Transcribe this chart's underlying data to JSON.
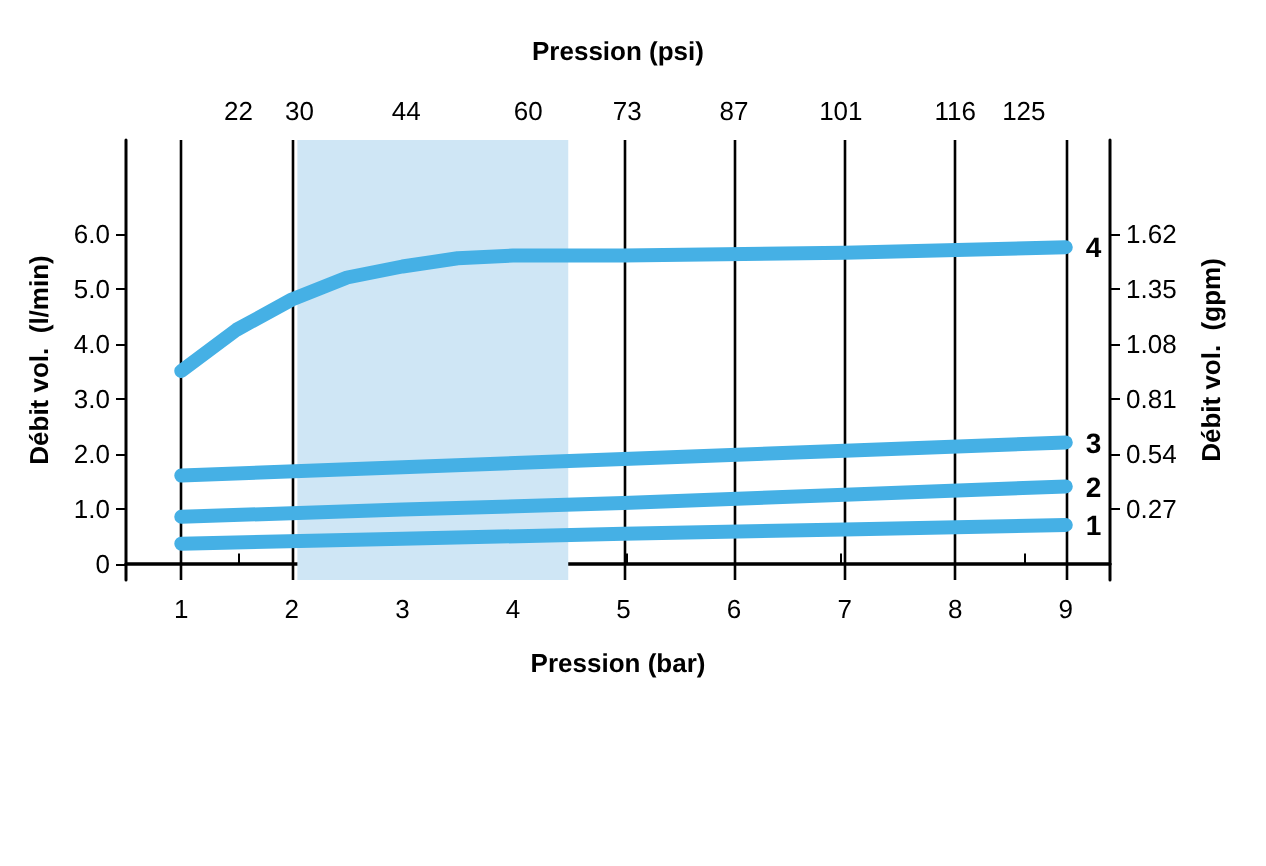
{
  "chart_data": {
    "type": "line",
    "xlabel": "Pression (bar)",
    "x2label": "Pression (psi)",
    "ylabel": "Débit vol.  (l/min)",
    "y2label": "Débit vol.  (gpm)",
    "xlim": [
      0.5,
      9.4
    ],
    "xticks": [
      1,
      2,
      3,
      4,
      5,
      6,
      7,
      8,
      9
    ],
    "x2lim": [
      7.25,
      136.3
    ],
    "x2ticks": [
      22,
      30,
      44,
      60,
      73,
      87,
      101,
      116,
      125
    ],
    "ylim": [
      -0.3,
      7.7
    ],
    "yticks": [
      0,
      {
        "value": 1,
        "label": "1.0"
      },
      {
        "value": 2,
        "label": "2.0"
      },
      {
        "value": 3,
        "label": "3.0"
      },
      {
        "value": 4,
        "label": "4.0"
      },
      {
        "value": 5,
        "label": "5.0"
      },
      {
        "value": 6,
        "label": "6.0"
      }
    ],
    "y2lim": [
      -0.081,
      2.079
    ],
    "y2ticks": [
      0.27,
      0.54,
      0.81,
      1.08,
      1.35,
      1.62
    ],
    "grid": "x",
    "legend": false,
    "line_style": "solid",
    "bands": [
      {
        "axis": "x",
        "from": 2.05,
        "to": 4.5,
        "color": "#cfe6f5"
      }
    ],
    "series": [
      {
        "name": "1",
        "color": "#45b0e5",
        "x": [
          1,
          3,
          5,
          7,
          9
        ],
        "values": [
          0.36,
          0.45,
          0.54,
          0.62,
          0.7
        ]
      },
      {
        "name": "2",
        "color": "#45b0e5",
        "x": [
          1,
          3,
          5,
          7,
          9
        ],
        "values": [
          0.85,
          0.98,
          1.1,
          1.25,
          1.4
        ]
      },
      {
        "name": "3",
        "color": "#45b0e5",
        "x": [
          1,
          3,
          5,
          7,
          9
        ],
        "values": [
          1.6,
          1.75,
          1.9,
          2.05,
          2.2
        ]
      },
      {
        "name": "4",
        "color": "#45b0e5",
        "x": [
          1,
          1.5,
          2,
          2.5,
          3,
          3.5,
          4,
          5,
          7,
          9
        ],
        "values": [
          3.5,
          4.25,
          4.8,
          5.2,
          5.4,
          5.55,
          5.6,
          5.6,
          5.65,
          5.75
        ]
      }
    ]
  }
}
